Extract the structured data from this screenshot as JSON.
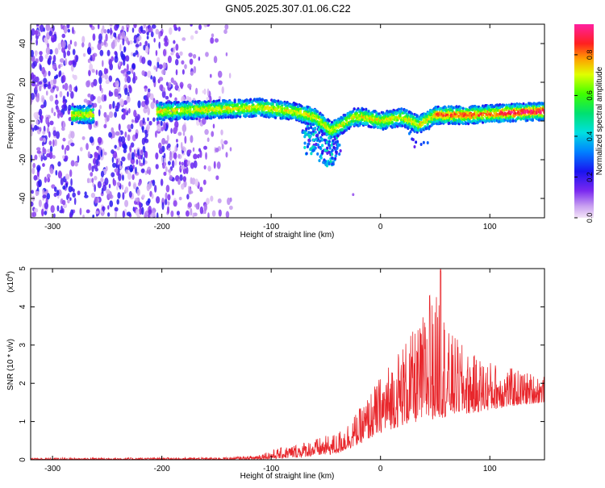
{
  "title": "GN05.2025.307.01.06.C22",
  "chart_data": [
    {
      "type": "heatmap",
      "title": "GN05.2025.307.01.06.C22",
      "xlabel": "Height of straight line (km)",
      "ylabel": "Frequency (Hz)",
      "xlim": [
        -320,
        150
      ],
      "ylim": [
        -50,
        50
      ],
      "x_ticks": [
        -300,
        -200,
        -100,
        0,
        100
      ],
      "x_tick_labels": [
        "-300",
        "-200",
        "-100",
        "0",
        "100"
      ],
      "y_ticks": [
        -40,
        -20,
        0,
        20,
        40
      ],
      "y_tick_labels": [
        "-40",
        "-20",
        "0",
        "20",
        "40"
      ],
      "colorbar": {
        "label": "Normalized spectral amplitude",
        "range": [
          0,
          0.95
        ],
        "ticks": [
          0.0,
          0.2,
          0.4,
          0.6,
          0.8
        ],
        "tick_labels": [
          "0.0",
          "0.2",
          "0.4",
          "0.6",
          "0.8"
        ]
      },
      "ridge": {
        "description_x": [
          -280,
          -200,
          -150,
          -110,
          -80,
          -60,
          -45,
          -35,
          -25,
          -15,
          0,
          20,
          35,
          50,
          80,
          110,
          150
        ],
        "frequency_hz": [
          3,
          5,
          6,
          7,
          5,
          2,
          -5,
          -2,
          2,
          2,
          0,
          2,
          -2,
          3,
          3,
          4,
          5
        ]
      }
    },
    {
      "type": "line",
      "xlabel": "Height of straight line (km)",
      "ylabel": "SNR (10 * v/v)",
      "y_scale_label": "(x10",
      "y_scale_exponent": "4",
      "xlim": [
        -320,
        150
      ],
      "ylim": [
        0,
        5
      ],
      "x_ticks": [
        -300,
        -200,
        -100,
        0,
        100
      ],
      "x_tick_labels": [
        "-300",
        "-200",
        "-100",
        "0",
        "100"
      ],
      "y_ticks": [
        0,
        1,
        2,
        3,
        4,
        5
      ],
      "y_tick_labels": [
        "0",
        "1",
        "2",
        "3",
        "4",
        "5"
      ],
      "series": [
        {
          "name": "SNR",
          "color": "#e8262b",
          "envelope_x": [
            -320,
            -150,
            -120,
            -100,
            -80,
            -60,
            -40,
            -20,
            0,
            20,
            35,
            45,
            50,
            55,
            60,
            70,
            80,
            100,
            120,
            150
          ],
          "envelope_peak": [
            0.05,
            0.06,
            0.1,
            0.25,
            0.4,
            0.55,
            0.7,
            1.3,
            2.2,
            3.1,
            3.5,
            4.3,
            4.1,
            5.0,
            3.4,
            3.2,
            2.8,
            2.6,
            2.4,
            2.2
          ],
          "envelope_base": [
            0.0,
            0.0,
            0.0,
            0.02,
            0.05,
            0.1,
            0.15,
            0.4,
            0.7,
            0.9,
            1.0,
            1.0,
            1.1,
            1.1,
            1.1,
            1.2,
            1.2,
            1.3,
            1.4,
            1.5
          ]
        }
      ]
    }
  ],
  "colors": {
    "line": "#e8262b",
    "axis": "#000000"
  }
}
